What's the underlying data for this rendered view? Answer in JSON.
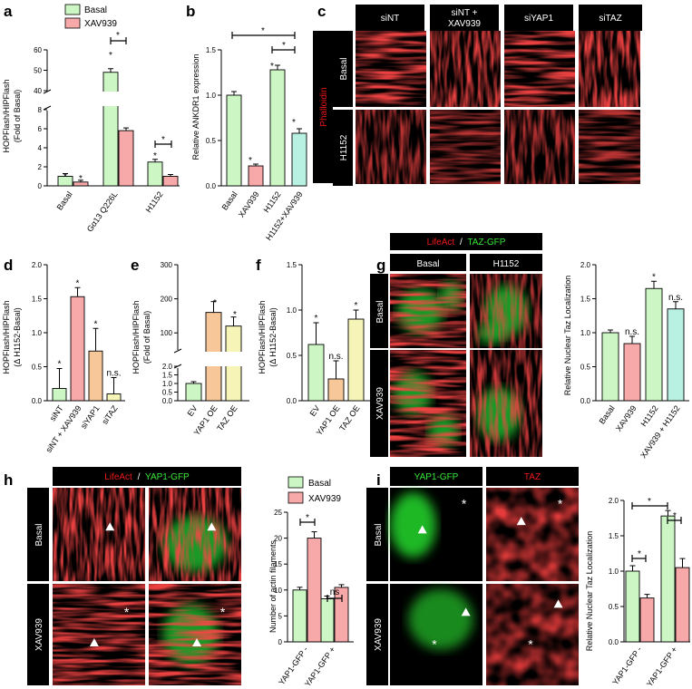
{
  "colors": {
    "green": "#ccf7c5",
    "pink": "#f7a8a8",
    "orange": "#f7c79a",
    "yellow": "#f6f4b6",
    "cyan": "#b8f0e2"
  },
  "panel_labels": [
    "a",
    "b",
    "c",
    "d",
    "e",
    "f",
    "g",
    "h",
    "i"
  ],
  "legend_top": {
    "basal": "Basal",
    "xav": "XAV939"
  },
  "panel_c": {
    "columns": [
      "siNT",
      "siNT +",
      "XAV939",
      "siYAP1",
      "siTAZ"
    ],
    "stain": "Phalloidin",
    "rows": [
      "Basal",
      "H1152"
    ]
  },
  "panel_g": {
    "stain_red": "LifeAct",
    "sep": "/",
    "stain_green": "TAZ-GFP",
    "columns": [
      "Basal",
      "H1152"
    ],
    "rows": [
      "Basal",
      "XAV939"
    ]
  },
  "panel_h": {
    "stain_red": "LifeAct",
    "sep": "/",
    "stain_green": "YAP1-GFP",
    "rows": [
      "Basal",
      "XAV939"
    ]
  },
  "panel_i": {
    "stain_green": "YAP1-GFP",
    "stain_red": "TAZ",
    "rows": [
      "Basal",
      "XAV939"
    ]
  },
  "chart_data": [
    {
      "id": "a",
      "type": "bar",
      "title": "",
      "ylabel": "HOPFlash/HIPFlash",
      "ylabel2": "(Fold of Basal)",
      "categories": [
        "Basal",
        "Gα13 Q226L",
        "H1152"
      ],
      "series": [
        {
          "name": "Basal",
          "values": [
            1.0,
            49,
            2.5
          ]
        },
        {
          "name": "XAV939",
          "values": [
            0.4,
            5.8,
            1.0
          ]
        }
      ],
      "ylim_lower": [
        0,
        8
      ],
      "ylim_upper": [
        40,
        60
      ],
      "ticks_lower": [
        "0",
        "2",
        "4",
        "6",
        "8"
      ],
      "ticks_upper": [
        "40",
        "50",
        "60"
      ],
      "broken_axis": true
    },
    {
      "id": "b",
      "type": "bar",
      "ylabel": "Relative ANKDR1 expression",
      "categories": [
        "Basal",
        "XAV939",
        "H1152",
        "H1152+XAV939"
      ],
      "values": [
        1.0,
        0.22,
        1.28,
        0.58
      ],
      "ylim": [
        0,
        1.5
      ],
      "ticks": [
        "0.0",
        "0.5",
        "1.0",
        "1.5"
      ]
    },
    {
      "id": "d",
      "type": "bar",
      "ylabel": "HOPFlash/HIPFlash",
      "ylabel2": "(Δ H1152-Basal)",
      "categories": [
        "siNT",
        "siNT + XAV939",
        "siYAP1",
        "siTAZ"
      ],
      "values": [
        0.18,
        1.53,
        0.73,
        0.1
      ],
      "ylim": [
        0,
        2.0
      ],
      "ticks": [
        "0.0",
        "0.5",
        "1.0",
        "1.5",
        "2.0"
      ],
      "annotations": [
        "*",
        "*",
        "*",
        "n.s."
      ]
    },
    {
      "id": "e",
      "type": "bar",
      "ylabel": "HOPFlash/HIPFlash",
      "ylabel2": "(Fold of Basal)",
      "categories": [
        "EV",
        "YAP1 OE",
        "TAZ OE"
      ],
      "values": [
        1.0,
        160,
        120
      ],
      "ylim_lower": [
        0,
        2.0
      ],
      "ylim_upper": [
        50,
        300
      ],
      "ticks_lower": [
        "0.0",
        "0.5",
        "1.0",
        "1.5",
        "2.0"
      ],
      "ticks_upper": [
        "100",
        "200",
        "300"
      ],
      "broken_axis": true
    },
    {
      "id": "f",
      "type": "bar",
      "ylabel": "HOPFlash/HIPFlash",
      "ylabel2": "(Δ H1152-Basal)",
      "categories": [
        "EV",
        "YAP1 OE",
        "TAZ OE"
      ],
      "values": [
        0.62,
        0.24,
        0.9
      ],
      "ylim": [
        0,
        1.5
      ],
      "ticks": [
        "0.0",
        "0.5",
        "1.0",
        "1.5"
      ],
      "annotations": [
        "*",
        "n.s.",
        "*"
      ]
    },
    {
      "id": "g",
      "type": "bar",
      "ylabel": "Relative Nuclear Taz Localization",
      "categories": [
        "Basal",
        "XAV939",
        "H1152",
        "XAV939 + H1152"
      ],
      "values": [
        1.0,
        0.84,
        1.65,
        1.35
      ],
      "ylim": [
        0,
        2.0
      ],
      "ticks": [
        "0.0",
        "0.5",
        "1.0",
        "1.5",
        "2.0"
      ],
      "annotations": [
        "",
        "n.s.",
        "*",
        "n.s."
      ]
    },
    {
      "id": "h",
      "type": "bar",
      "ylabel": "Number of actin filaments",
      "categories": [
        "YAP1-GFP -",
        "YAP1-GFP +"
      ],
      "series": [
        {
          "name": "Basal",
          "values": [
            10,
            8.3
          ]
        },
        {
          "name": "XAV939",
          "values": [
            20,
            10.5
          ]
        }
      ],
      "ylim": [
        0,
        25
      ],
      "ticks": [
        "0",
        "5",
        "10",
        "15",
        "20",
        "25"
      ],
      "annotations": [
        "*",
        "ns"
      ]
    },
    {
      "id": "i",
      "type": "bar",
      "ylabel": "Relative Nuclear Taz Localization",
      "categories": [
        "YAP1-GFP -",
        "YAP1-GFP +"
      ],
      "series": [
        {
          "name": "Basal",
          "values": [
            1.0,
            1.78
          ]
        },
        {
          "name": "XAV939",
          "values": [
            0.62,
            1.05
          ]
        }
      ],
      "ylim": [
        0,
        2.0
      ],
      "ticks": [
        "0.0",
        "0.5",
        "1.0",
        "1.5",
        "2.0"
      ],
      "annotations": [
        "*",
        "*",
        "*"
      ]
    }
  ]
}
